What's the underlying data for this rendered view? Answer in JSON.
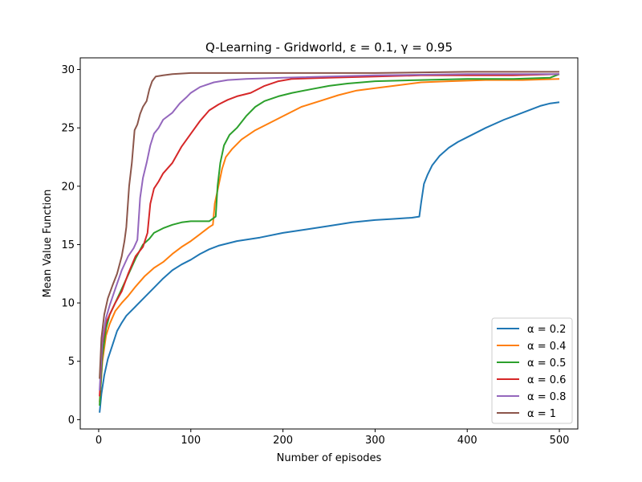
{
  "chart_data": {
    "type": "line",
    "title": "Q-Learning -  Gridworld, ε = 0.1, γ = 0.95",
    "xlabel": "Number of episodes",
    "ylabel": "Mean Value Function",
    "xlim": [
      -20,
      520
    ],
    "ylim": [
      -0.8,
      31.0
    ],
    "xticks": [
      0,
      100,
      200,
      300,
      400,
      500
    ],
    "yticks": [
      0,
      5,
      10,
      15,
      20,
      25,
      30
    ],
    "legend_position": "lower-right",
    "grid": false,
    "series": [
      {
        "name": "α = 0.2",
        "color": "#1f77b4",
        "points": [
          [
            1,
            0.6
          ],
          [
            3,
            2.2
          ],
          [
            6,
            3.8
          ],
          [
            10,
            5.2
          ],
          [
            15,
            6.4
          ],
          [
            20,
            7.6
          ],
          [
            25,
            8.3
          ],
          [
            30,
            8.9
          ],
          [
            40,
            9.7
          ],
          [
            50,
            10.5
          ],
          [
            60,
            11.3
          ],
          [
            70,
            12.1
          ],
          [
            80,
            12.8
          ],
          [
            90,
            13.3
          ],
          [
            100,
            13.7
          ],
          [
            110,
            14.2
          ],
          [
            120,
            14.6
          ],
          [
            130,
            14.9
          ],
          [
            150,
            15.3
          ],
          [
            175,
            15.6
          ],
          [
            200,
            16.0
          ],
          [
            225,
            16.3
          ],
          [
            250,
            16.6
          ],
          [
            275,
            16.9
          ],
          [
            300,
            17.1
          ],
          [
            320,
            17.2
          ],
          [
            340,
            17.3
          ],
          [
            348,
            17.4
          ],
          [
            350,
            18.6
          ],
          [
            353,
            20.2
          ],
          [
            357,
            21.0
          ],
          [
            362,
            21.8
          ],
          [
            370,
            22.6
          ],
          [
            380,
            23.3
          ],
          [
            390,
            23.8
          ],
          [
            400,
            24.2
          ],
          [
            420,
            25.0
          ],
          [
            440,
            25.7
          ],
          [
            460,
            26.3
          ],
          [
            480,
            26.9
          ],
          [
            490,
            27.1
          ],
          [
            500,
            27.2
          ]
        ]
      },
      {
        "name": "α = 0.4",
        "color": "#ff7f0e",
        "points": [
          [
            1,
            1.5
          ],
          [
            4,
            5.0
          ],
          [
            8,
            7.2
          ],
          [
            12,
            8.2
          ],
          [
            18,
            9.3
          ],
          [
            25,
            10.0
          ],
          [
            32,
            10.6
          ],
          [
            40,
            11.4
          ],
          [
            50,
            12.3
          ],
          [
            60,
            13.0
          ],
          [
            70,
            13.5
          ],
          [
            80,
            14.2
          ],
          [
            90,
            14.8
          ],
          [
            100,
            15.3
          ],
          [
            110,
            15.9
          ],
          [
            120,
            16.5
          ],
          [
            124,
            16.7
          ],
          [
            126,
            18.5
          ],
          [
            130,
            20.0
          ],
          [
            134,
            21.5
          ],
          [
            138,
            22.5
          ],
          [
            145,
            23.2
          ],
          [
            155,
            24.0
          ],
          [
            170,
            24.8
          ],
          [
            185,
            25.4
          ],
          [
            200,
            26.0
          ],
          [
            220,
            26.8
          ],
          [
            240,
            27.3
          ],
          [
            260,
            27.8
          ],
          [
            280,
            28.2
          ],
          [
            300,
            28.4
          ],
          [
            320,
            28.6
          ],
          [
            350,
            28.9
          ],
          [
            380,
            29.0
          ],
          [
            420,
            29.1
          ],
          [
            460,
            29.1
          ],
          [
            500,
            29.2
          ]
        ]
      },
      {
        "name": "α = 0.5",
        "color": "#2ca02c",
        "points": [
          [
            1,
            1.2
          ],
          [
            4,
            5.5
          ],
          [
            8,
            7.8
          ],
          [
            12,
            9.0
          ],
          [
            18,
            10.0
          ],
          [
            25,
            11.2
          ],
          [
            32,
            12.4
          ],
          [
            40,
            13.8
          ],
          [
            48,
            15.0
          ],
          [
            55,
            15.5
          ],
          [
            60,
            16.0
          ],
          [
            70,
            16.4
          ],
          [
            80,
            16.7
          ],
          [
            90,
            16.9
          ],
          [
            100,
            17.0
          ],
          [
            110,
            17.0
          ],
          [
            120,
            17.0
          ],
          [
            127,
            17.4
          ],
          [
            129,
            20.0
          ],
          [
            132,
            22.0
          ],
          [
            136,
            23.5
          ],
          [
            142,
            24.4
          ],
          [
            150,
            25.0
          ],
          [
            160,
            26.0
          ],
          [
            170,
            26.8
          ],
          [
            180,
            27.3
          ],
          [
            195,
            27.7
          ],
          [
            210,
            28.0
          ],
          [
            230,
            28.3
          ],
          [
            250,
            28.6
          ],
          [
            270,
            28.8
          ],
          [
            300,
            29.0
          ],
          [
            350,
            29.1
          ],
          [
            400,
            29.2
          ],
          [
            450,
            29.2
          ],
          [
            490,
            29.3
          ],
          [
            500,
            29.6
          ]
        ]
      },
      {
        "name": "α = 0.6",
        "color": "#d62728",
        "points": [
          [
            1,
            2.0
          ],
          [
            4,
            6.5
          ],
          [
            8,
            8.3
          ],
          [
            12,
            9.0
          ],
          [
            18,
            10.0
          ],
          [
            25,
            11.0
          ],
          [
            32,
            12.5
          ],
          [
            40,
            14.0
          ],
          [
            48,
            14.8
          ],
          [
            53,
            16.0
          ],
          [
            56,
            18.5
          ],
          [
            60,
            19.8
          ],
          [
            65,
            20.4
          ],
          [
            70,
            21.1
          ],
          [
            80,
            22.0
          ],
          [
            90,
            23.4
          ],
          [
            100,
            24.5
          ],
          [
            110,
            25.6
          ],
          [
            120,
            26.5
          ],
          [
            130,
            27.0
          ],
          [
            140,
            27.4
          ],
          [
            150,
            27.7
          ],
          [
            165,
            28.0
          ],
          [
            180,
            28.6
          ],
          [
            195,
            29.0
          ],
          [
            210,
            29.2
          ],
          [
            250,
            29.3
          ],
          [
            300,
            29.4
          ],
          [
            350,
            29.5
          ],
          [
            400,
            29.5
          ],
          [
            450,
            29.5
          ],
          [
            500,
            29.6
          ]
        ]
      },
      {
        "name": "α = 0.8",
        "color": "#9467bd",
        "points": [
          [
            1,
            2.5
          ],
          [
            4,
            6.8
          ],
          [
            8,
            8.7
          ],
          [
            12,
            9.8
          ],
          [
            18,
            11.2
          ],
          [
            25,
            12.8
          ],
          [
            32,
            14.0
          ],
          [
            38,
            14.7
          ],
          [
            42,
            15.4
          ],
          [
            45,
            19.0
          ],
          [
            48,
            20.7
          ],
          [
            52,
            22.0
          ],
          [
            56,
            23.5
          ],
          [
            60,
            24.5
          ],
          [
            65,
            25.0
          ],
          [
            70,
            25.7
          ],
          [
            80,
            26.3
          ],
          [
            88,
            27.1
          ],
          [
            95,
            27.6
          ],
          [
            100,
            28.0
          ],
          [
            110,
            28.5
          ],
          [
            125,
            28.9
          ],
          [
            140,
            29.1
          ],
          [
            160,
            29.2
          ],
          [
            200,
            29.3
          ],
          [
            300,
            29.5
          ],
          [
            400,
            29.6
          ],
          [
            500,
            29.6
          ]
        ]
      },
      {
        "name": "α = 1",
        "color": "#8c564b",
        "points": [
          [
            1,
            3.5
          ],
          [
            3,
            7.0
          ],
          [
            6,
            9.0
          ],
          [
            10,
            10.4
          ],
          [
            15,
            11.5
          ],
          [
            20,
            12.5
          ],
          [
            25,
            14.0
          ],
          [
            28,
            15.3
          ],
          [
            30,
            16.5
          ],
          [
            33,
            20.0
          ],
          [
            36,
            22.0
          ],
          [
            39,
            24.8
          ],
          [
            42,
            25.3
          ],
          [
            45,
            26.2
          ],
          [
            48,
            26.8
          ],
          [
            52,
            27.3
          ],
          [
            55,
            28.3
          ],
          [
            58,
            29.0
          ],
          [
            62,
            29.4
          ],
          [
            70,
            29.5
          ],
          [
            80,
            29.6
          ],
          [
            100,
            29.7
          ],
          [
            150,
            29.7
          ],
          [
            200,
            29.7
          ],
          [
            300,
            29.7
          ],
          [
            400,
            29.8
          ],
          [
            500,
            29.8
          ]
        ]
      }
    ]
  }
}
